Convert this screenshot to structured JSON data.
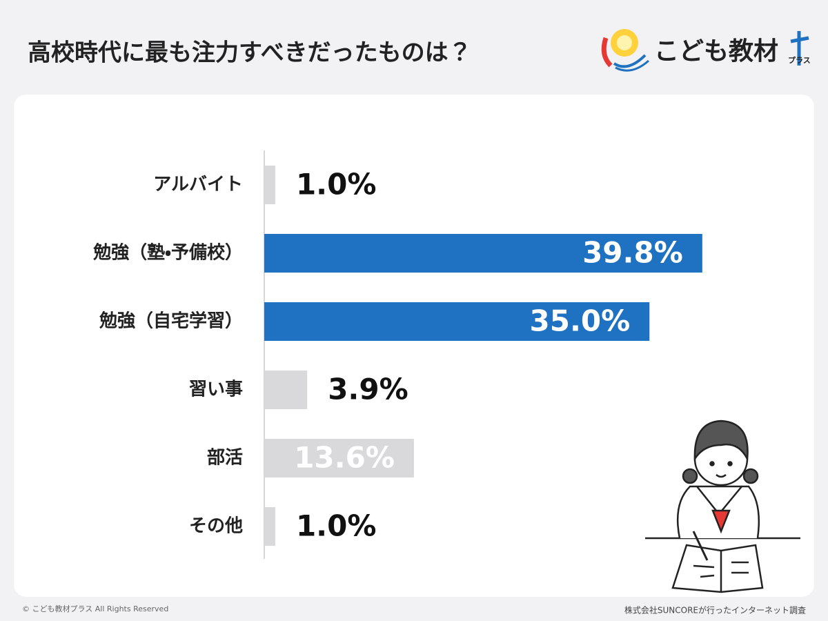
{
  "chart_data": {
    "type": "bar",
    "orientation": "horizontal",
    "title": "高校時代に最も注力すべきだったものは？",
    "categories": [
      "アルバイト",
      "勉強（塾・予備校）",
      "勉強（自宅学習）",
      "習い事",
      "部活",
      "その他"
    ],
    "values": [
      1.0,
      39.8,
      35.0,
      3.9,
      13.6,
      1.0
    ],
    "value_labels": [
      "1.0%",
      "39.8%",
      "35.0%",
      "3.9%",
      "13.6%",
      "1.0%"
    ],
    "colors": [
      "#d9d9dc",
      "#1f71c2",
      "#1f71c2",
      "#d9d9dc",
      "#d9d9dc",
      "#d9d9dc"
    ],
    "xlim": [
      0,
      40
    ]
  },
  "brand": {
    "name": "こども教材",
    "suffix": "プラス"
  },
  "footer": {
    "copyright": "© こども教材プラス All Rights Reserved",
    "source": "株式会社SUNCOREが行ったインターネット調査"
  }
}
